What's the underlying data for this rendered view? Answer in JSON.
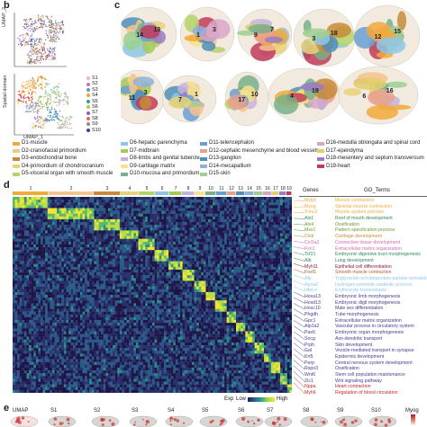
{
  "panels": {
    "b": "b",
    "c": "c",
    "d": "d",
    "e": "e"
  },
  "umap": {
    "axis_x": "UMAP_1",
    "axis_y": "UMAP_2",
    "axis_y_side": "Spatial domain"
  },
  "samples": [
    {
      "label": "S1",
      "color": "#e5b5d6"
    },
    {
      "label": "S2",
      "color": "#d36ab3"
    },
    {
      "label": "S3",
      "color": "#6a8fd8"
    },
    {
      "label": "S4",
      "color": "#e8a43a"
    },
    {
      "label": "S5",
      "color": "#3ea07a"
    },
    {
      "label": "S6",
      "color": "#b7c84a"
    },
    {
      "label": "S7",
      "color": "#8d5bc1"
    },
    {
      "label": "S8",
      "color": "#e06b58"
    },
    {
      "label": "S9",
      "color": "#8c8c8c"
    },
    {
      "label": "S10",
      "color": "#4b3a8c"
    }
  ],
  "domains": [
    {
      "label": "D1-muscle",
      "color": "#f2a93b"
    },
    {
      "label": "D2-craniofacial primordium",
      "color": "#f5c48c"
    },
    {
      "label": "D3-endochondral bone",
      "color": "#c88b3a"
    },
    {
      "label": "D4-primordium of chondrocranium",
      "color": "#e8d27a"
    },
    {
      "label": "D5-visceral organ with smooth muscle",
      "color": "#b6d36a"
    },
    {
      "label": "D6-hepatic parenchyma",
      "color": "#8ec7e6"
    },
    {
      "label": "D7-midbrain",
      "color": "#a7c957"
    },
    {
      "label": "D8-limbs and genital tubercle",
      "color": "#c6b3dd"
    },
    {
      "label": "D9-cartilage matrix",
      "color": "#f7e28a"
    },
    {
      "label": "D10-mucosa and primordium",
      "color": "#77b08a"
    },
    {
      "label": "D11-telencephalon",
      "color": "#6b9fd3"
    },
    {
      "label": "D12-cephalic mesenchyme and blood vessels",
      "color": "#e9a08d"
    },
    {
      "label": "D13-ganglion",
      "color": "#4f8fb8"
    },
    {
      "label": "D14-mecapallium",
      "color": "#8fb0d9"
    },
    {
      "label": "D15-skin",
      "color": "#9bd08f"
    },
    {
      "label": "D16-medulla oblongata and spinal cord",
      "color": "#d9a6c9"
    },
    {
      "label": "D17-ependyma",
      "color": "#e2cf6b"
    },
    {
      "label": "D18-mesentery and septum transversum",
      "color": "#9a7bc4"
    },
    {
      "label": "D19-heart",
      "color": "#c23b5a"
    }
  ],
  "heatmap": {
    "cluster_labels": [
      "1",
      "2",
      "3",
      "4",
      "5",
      "6",
      "7",
      "8",
      "9",
      "10",
      "11",
      "12",
      "13",
      "14",
      "15",
      "16",
      "17",
      "18",
      "19"
    ],
    "colorbar": {
      "label_left": "Exp",
      "label_low": "Low",
      "label_high": "High"
    },
    "genes_header": "Genes",
    "go_header": "GO_Terms"
  },
  "gene_rows": [
    {
      "gene": "Mylpf",
      "term": "Muscle contraction",
      "color": "#f2a93b"
    },
    {
      "gene": "Myog",
      "term": "Skeletal muscle contraction",
      "color": "#f2a93b"
    },
    {
      "gene": "Tnnc2",
      "term": "Muscle system process",
      "color": "#f2a93b"
    },
    {
      "gene": "Alx1",
      "term": "Roof of mouth development",
      "color": "#2e8b57"
    },
    {
      "gene": "Alx4",
      "term": "Ossification",
      "color": "#6a9a2a"
    },
    {
      "gene": "Msx1",
      "term": "Pattern specification process",
      "color": "#6a9a2a"
    },
    {
      "gene": "Ctsk",
      "term": "Cartilage development",
      "color": "#c88b3a"
    },
    {
      "gene": "Col1a2",
      "term": "Connective tissue development",
      "color": "#d36ab3"
    },
    {
      "gene": "Fxn1",
      "term": "Extracellular matrix organization",
      "color": "#d36ab3"
    },
    {
      "gene": "Tcf21",
      "term": "Embryonic digestive tract morphogenesis",
      "color": "#2e8b57"
    },
    {
      "gene": "Alb",
      "term": "Lung development",
      "color": "#2e8b57"
    },
    {
      "gene": "Myh11",
      "term": "Epithelial cell differentiation",
      "color": "#8b1a3a"
    },
    {
      "gene": "Foxf1",
      "term": "Smooth muscle contraction",
      "color": "#b35a2a"
    },
    {
      "gene": "Afp",
      "term": "Triglyceride-rich lipoprotein particle remodeling",
      "color": "#8ec7e6"
    },
    {
      "gene": "Apoa2",
      "term": "Hydrogen peroxide catabolic process",
      "color": "#8ec7e6"
    },
    {
      "gene": "Hba-x",
      "term": "Erythrocyte homeostasis",
      "color": "#8ec7e6"
    },
    {
      "gene": "Hoxa13",
      "term": "Embryonic limb morphogenesis",
      "color": "#4b3a8c"
    },
    {
      "gene": "Hoxd13",
      "term": "Embryonic digit morphogenesis",
      "color": "#4b3a8c"
    },
    {
      "gene": "Hoxc10",
      "term": "Male sex differentiation",
      "color": "#4b3a8c"
    },
    {
      "gene": "Phgdh",
      "term": "Tube morphogenesis",
      "color": "#4b3a8c"
    },
    {
      "gene": "Gpc1",
      "term": "Extracellular matrix organization",
      "color": "#4b3a8c"
    },
    {
      "gene": "Atp1a2",
      "term": "Vascular process in circulatory system",
      "color": "#4b3a8c"
    },
    {
      "gene": "Pax6",
      "term": "Embryonic organ morphogenesis",
      "color": "#4b3a8c"
    },
    {
      "gene": "Sncg",
      "term": "Axo-dendritic transport",
      "color": "#4b3a8c"
    },
    {
      "gene": "Prph",
      "term": "Skin development",
      "color": "#4b3a8c"
    },
    {
      "gene": "Gal",
      "term": "Vesicle-mediated transport in synapse",
      "color": "#4b3a8c"
    },
    {
      "gene": "Krt5",
      "term": "Epidermis development",
      "color": "#4b3a8c"
    },
    {
      "gene": "Perp",
      "term": "Central nervous system development",
      "color": "#4b3a8c"
    },
    {
      "gene": "Rspo3",
      "term": "Ossification",
      "color": "#4b3a8c"
    },
    {
      "gene": "Wnt6",
      "term": "Stem cell population maintenance",
      "color": "#4b3a8c"
    },
    {
      "gene": "Zic1",
      "term": "Wnt signaling pathway",
      "color": "#4b3a8c"
    },
    {
      "gene": "Nppa",
      "term": "Heart contraction",
      "color": "#c2272d"
    },
    {
      "gene": "Myh6",
      "term": "Regulation of blood circulation",
      "color": "#c2272d"
    }
  ],
  "panel_e": {
    "labels": [
      "UMAP",
      "S1",
      "S2",
      "S3",
      "S4",
      "S5",
      "S6",
      "S7",
      "S8",
      "S9",
      "S10"
    ],
    "gene": "Myog"
  },
  "section_numbers": [
    [
      "14",
      "13",
      "1",
      "3",
      "9",
      "7",
      "3",
      "18",
      "12",
      "15"
    ],
    [
      "11",
      "3",
      "7",
      "1",
      "17",
      "10",
      "4",
      "19",
      "6",
      "16"
    ]
  ]
}
